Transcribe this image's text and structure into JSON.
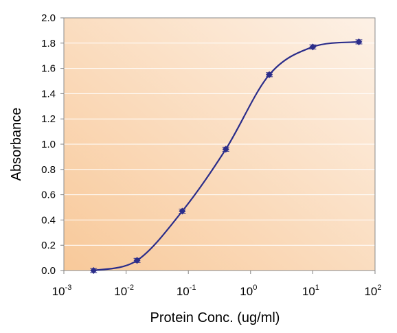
{
  "chart_data": {
    "type": "line",
    "title": "",
    "xlabel": "Protein Conc. (ug/ml)",
    "ylabel": "Absorbance",
    "x_scale": "log",
    "xlim": [
      0.001,
      100
    ],
    "ylim": [
      0.0,
      2.0
    ],
    "grid": true,
    "y_ticks": [
      "0.0",
      "0.2",
      "0.4",
      "0.6",
      "0.8",
      "1.0",
      "1.2",
      "1.4",
      "1.6",
      "1.8",
      "2.0"
    ],
    "x_ticks": [
      {
        "base": "10",
        "exp": "-3"
      },
      {
        "base": "10",
        "exp": "-2"
      },
      {
        "base": "10",
        "exp": "-1"
      },
      {
        "base": "10",
        "exp": "0"
      },
      {
        "base": "10",
        "exp": "1"
      },
      {
        "base": "10",
        "exp": "2"
      }
    ],
    "series": [
      {
        "x": [
          0.003,
          0.015,
          0.08,
          0.4,
          2.0,
          10.0,
          55.0
        ],
        "y": [
          0.0,
          0.08,
          0.47,
          0.96,
          1.55,
          1.77,
          1.81
        ]
      }
    ],
    "colors": {
      "background_gradient_start": "#f8c99a",
      "background_gradient_end": "#fdf1e6",
      "line": "#2b2d8a",
      "marker": "#2b2d8a",
      "grid": "#ffffff"
    }
  }
}
